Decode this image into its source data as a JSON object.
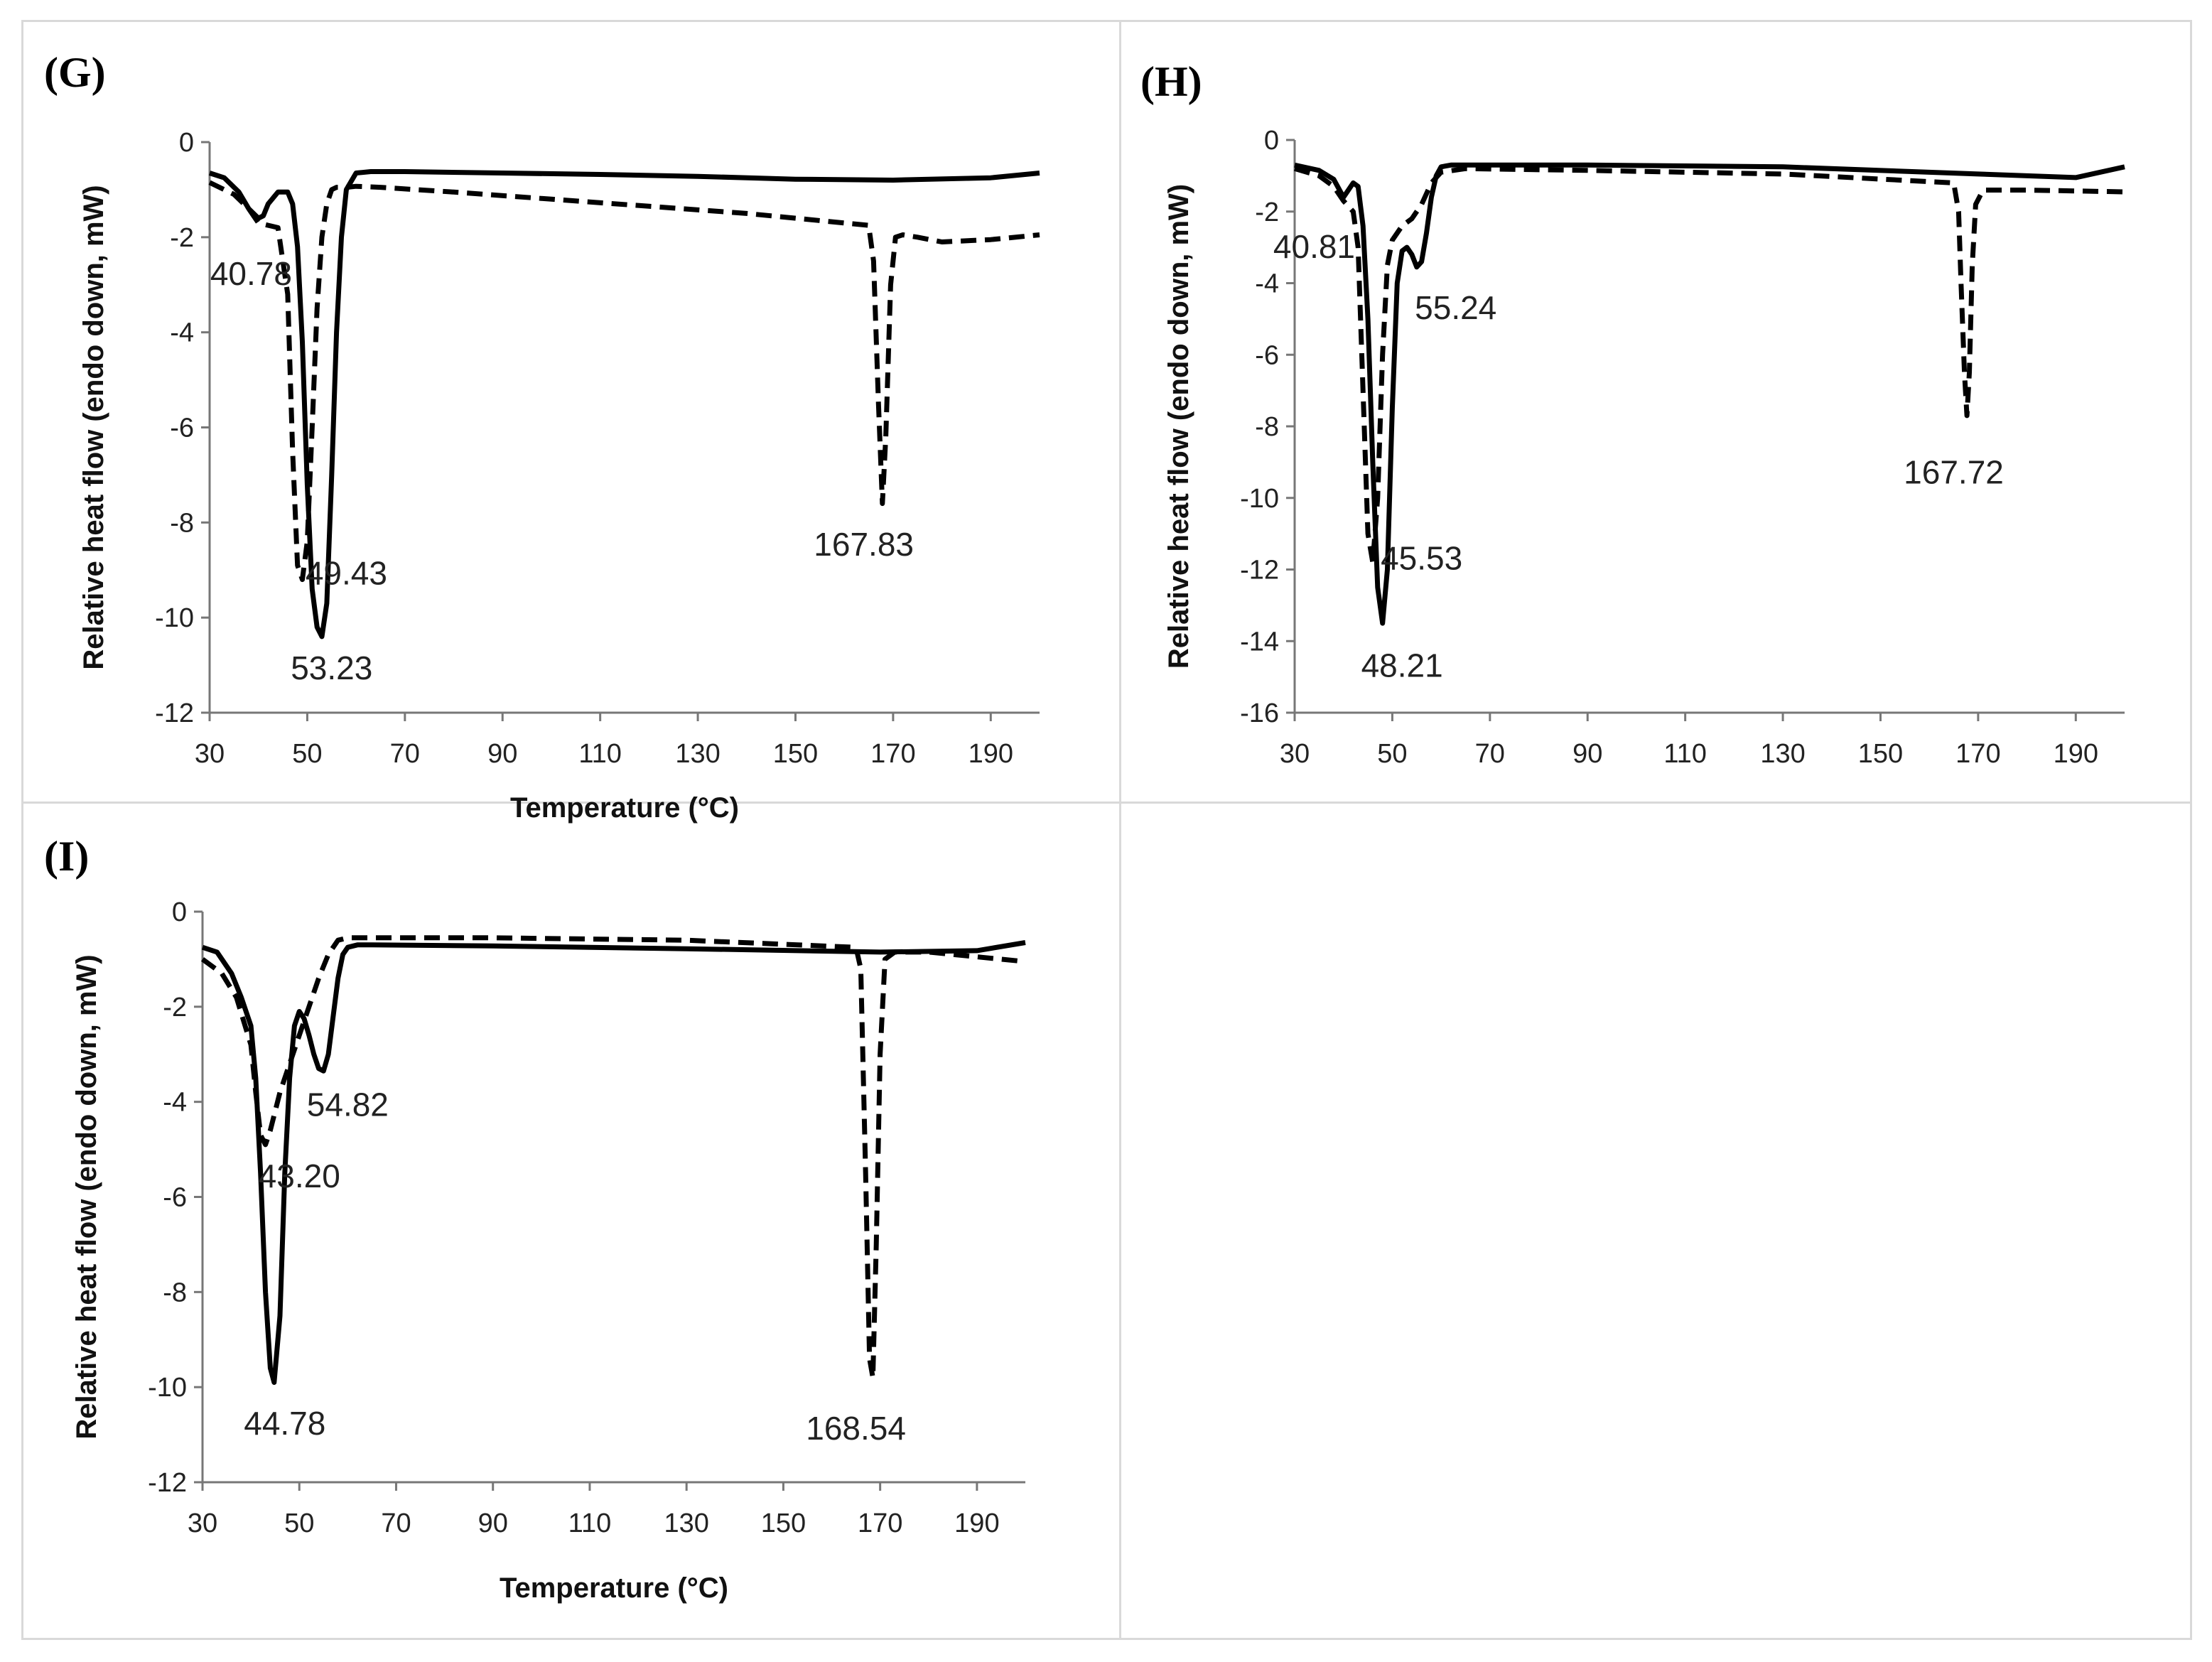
{
  "chart_data": [
    {
      "type": "line",
      "panel_label": "(G)",
      "xlabel": "Temperature (°C)",
      "ylabel": "Relative  heat flow (endo down, mW)",
      "xlim": [
        30,
        200
      ],
      "ylim": [
        -12,
        0
      ],
      "xticks": [
        30,
        50,
        70,
        90,
        110,
        130,
        150,
        170,
        190
      ],
      "yticks": [
        0,
        -2,
        -4,
        -6,
        -8,
        -10,
        -12
      ],
      "series": [
        {
          "name": "solid",
          "style": "solid",
          "x": [
            30,
            33,
            36,
            38,
            40,
            41,
            42,
            44,
            46,
            47,
            48,
            49,
            50,
            51,
            52,
            53,
            54,
            55,
            56,
            57,
            58,
            60,
            63,
            70,
            90,
            110,
            130,
            150,
            170,
            190,
            200
          ],
          "y": [
            -0.65,
            -0.75,
            -1.05,
            -1.4,
            -1.6,
            -1.55,
            -1.3,
            -1.05,
            -1.05,
            -1.3,
            -2.2,
            -4.2,
            -7.2,
            -9.4,
            -10.2,
            -10.4,
            -9.7,
            -7.0,
            -4.0,
            -2.0,
            -1.0,
            -0.65,
            -0.62,
            -0.62,
            -0.65,
            -0.68,
            -0.72,
            -0.78,
            -0.8,
            -0.75,
            -0.65
          ]
        },
        {
          "name": "dashed",
          "style": "dashed",
          "x": [
            30,
            35,
            38,
            40,
            42,
            44,
            46,
            47,
            48,
            49,
            50,
            51,
            52,
            53,
            54,
            55,
            56,
            58,
            60,
            65,
            80,
            100,
            120,
            140,
            160,
            165,
            166,
            167,
            167.8,
            168.5,
            169.5,
            170.5,
            172,
            175,
            180,
            190,
            200
          ],
          "y": [
            -0.85,
            -1.1,
            -1.4,
            -1.7,
            -1.75,
            -1.8,
            -3.2,
            -6.5,
            -8.9,
            -9.2,
            -8.4,
            -6.0,
            -3.5,
            -2.0,
            -1.3,
            -1.0,
            -0.95,
            -0.95,
            -0.93,
            -0.95,
            -1.05,
            -1.2,
            -1.35,
            -1.5,
            -1.7,
            -1.75,
            -2.5,
            -5.5,
            -7.6,
            -6.2,
            -3.0,
            -2.0,
            -1.95,
            -2.0,
            -2.1,
            -2.05,
            -1.95
          ]
        }
      ],
      "annotations": [
        {
          "text": "40.78",
          "x": 38.5,
          "y": -3.0
        },
        {
          "text": "49.43",
          "x": 58,
          "y": -9.3
        },
        {
          "text": "53.23",
          "x": 55,
          "y": -11.3
        },
        {
          "text": "167.83",
          "x": 164,
          "y": -8.7
        }
      ]
    },
    {
      "type": "line",
      "panel_label": "(H)",
      "xlabel": "",
      "ylabel": "Relative  heat flow (endo down, mW)",
      "xlim": [
        30,
        200
      ],
      "ylim": [
        -16,
        0
      ],
      "xticks": [
        30,
        50,
        70,
        90,
        110,
        130,
        150,
        170,
        190
      ],
      "yticks": [
        0,
        -2,
        -4,
        -6,
        -8,
        -10,
        -12,
        -14,
        -16
      ],
      "series": [
        {
          "name": "solid",
          "style": "solid",
          "x": [
            30,
            35,
            38,
            40,
            41,
            42,
            43,
            44,
            45,
            46,
            47,
            48,
            49,
            50,
            51,
            52,
            53,
            54,
            55,
            56,
            57,
            58,
            59,
            60,
            62,
            65,
            90,
            130,
            170,
            190,
            200
          ],
          "y": [
            -0.7,
            -0.85,
            -1.1,
            -1.6,
            -1.4,
            -1.2,
            -1.3,
            -2.4,
            -5.0,
            -9.0,
            -12.5,
            -13.5,
            -12.0,
            -7.5,
            -4.0,
            -3.1,
            -3.0,
            -3.2,
            -3.55,
            -3.4,
            -2.6,
            -1.6,
            -1.0,
            -0.75,
            -0.7,
            -0.7,
            -0.7,
            -0.75,
            -0.95,
            -1.05,
            -0.75
          ]
        },
        {
          "name": "dashed",
          "style": "dashed",
          "x": [
            30,
            35,
            38,
            40,
            42,
            43,
            44,
            45,
            46,
            47,
            48,
            49,
            50,
            52,
            54,
            56,
            58,
            60,
            65,
            90,
            130,
            165,
            166,
            166.5,
            167.2,
            167.7,
            168.2,
            168.8,
            169.5,
            171,
            180,
            200
          ],
          "y": [
            -0.8,
            -1.0,
            -1.3,
            -1.7,
            -2.0,
            -3.0,
            -7.0,
            -11.0,
            -11.8,
            -10.0,
            -6.0,
            -3.5,
            -2.8,
            -2.4,
            -2.2,
            -1.8,
            -1.2,
            -0.9,
            -0.8,
            -0.85,
            -0.95,
            -1.2,
            -2.0,
            -4.0,
            -6.5,
            -7.7,
            -6.5,
            -3.5,
            -1.8,
            -1.4,
            -1.4,
            -1.45
          ]
        }
      ],
      "annotations": [
        {
          "text": "40.81",
          "x": 34,
          "y": -3.3
        },
        {
          "text": "55.24",
          "x": 63,
          "y": -5.0
        },
        {
          "text": "45.53",
          "x": 56,
          "y": -12.0
        },
        {
          "text": "48.21",
          "x": 52,
          "y": -15.0
        },
        {
          "text": "167.72",
          "x": 165,
          "y": -9.6
        }
      ]
    },
    {
      "type": "line",
      "panel_label": "(I)",
      "xlabel": "Temperature (°C)",
      "ylabel": "Relative  heat flow (endo down, mW)",
      "xlim": [
        30,
        200
      ],
      "ylim": [
        -12,
        0
      ],
      "xticks": [
        30,
        50,
        70,
        90,
        110,
        130,
        150,
        170,
        190
      ],
      "yticks": [
        0,
        -2,
        -4,
        -6,
        -8,
        -10,
        -12
      ],
      "series": [
        {
          "name": "solid",
          "style": "solid",
          "x": [
            30,
            33,
            36,
            38,
            40,
            41,
            42,
            43,
            44,
            44.8,
            46,
            47,
            48,
            49,
            50,
            51,
            52,
            53,
            54,
            55,
            56,
            57,
            58,
            59,
            60,
            62,
            65,
            90,
            130,
            170,
            190,
            200
          ],
          "y": [
            -0.75,
            -0.85,
            -1.3,
            -1.8,
            -2.4,
            -3.5,
            -5.5,
            -8.0,
            -9.6,
            -9.9,
            -8.5,
            -5.5,
            -3.5,
            -2.4,
            -2.1,
            -2.25,
            -2.6,
            -3.0,
            -3.3,
            -3.35,
            -3.0,
            -2.2,
            -1.4,
            -0.9,
            -0.75,
            -0.7,
            -0.7,
            -0.72,
            -0.78,
            -0.85,
            -0.82,
            -0.65
          ]
        },
        {
          "name": "dashed",
          "style": "dashed",
          "x": [
            30,
            34,
            37,
            40,
            41,
            42,
            43,
            44,
            45,
            46,
            48,
            50,
            52,
            54,
            56,
            58,
            60,
            65,
            90,
            130,
            165,
            166,
            167,
            167.8,
            168.5,
            169.2,
            170,
            171,
            173,
            180,
            190,
            200
          ],
          "y": [
            -1.0,
            -1.3,
            -1.8,
            -2.8,
            -3.8,
            -4.7,
            -4.9,
            -4.6,
            -4.2,
            -3.8,
            -3.2,
            -2.6,
            -2.0,
            -1.4,
            -0.9,
            -0.6,
            -0.55,
            -0.55,
            -0.55,
            -0.6,
            -0.75,
            -1.2,
            -5.5,
            -9.4,
            -9.8,
            -7.0,
            -3.0,
            -1.0,
            -0.85,
            -0.85,
            -0.95,
            -1.05
          ]
        }
      ],
      "annotations": [
        {
          "text": "54.82",
          "x": 60,
          "y": -4.3
        },
        {
          "text": "43.20",
          "x": 50,
          "y": -5.8
        },
        {
          "text": "44.78",
          "x": 47,
          "y": -11.0
        },
        {
          "text": "168.54",
          "x": 165,
          "y": -11.1
        }
      ]
    }
  ]
}
